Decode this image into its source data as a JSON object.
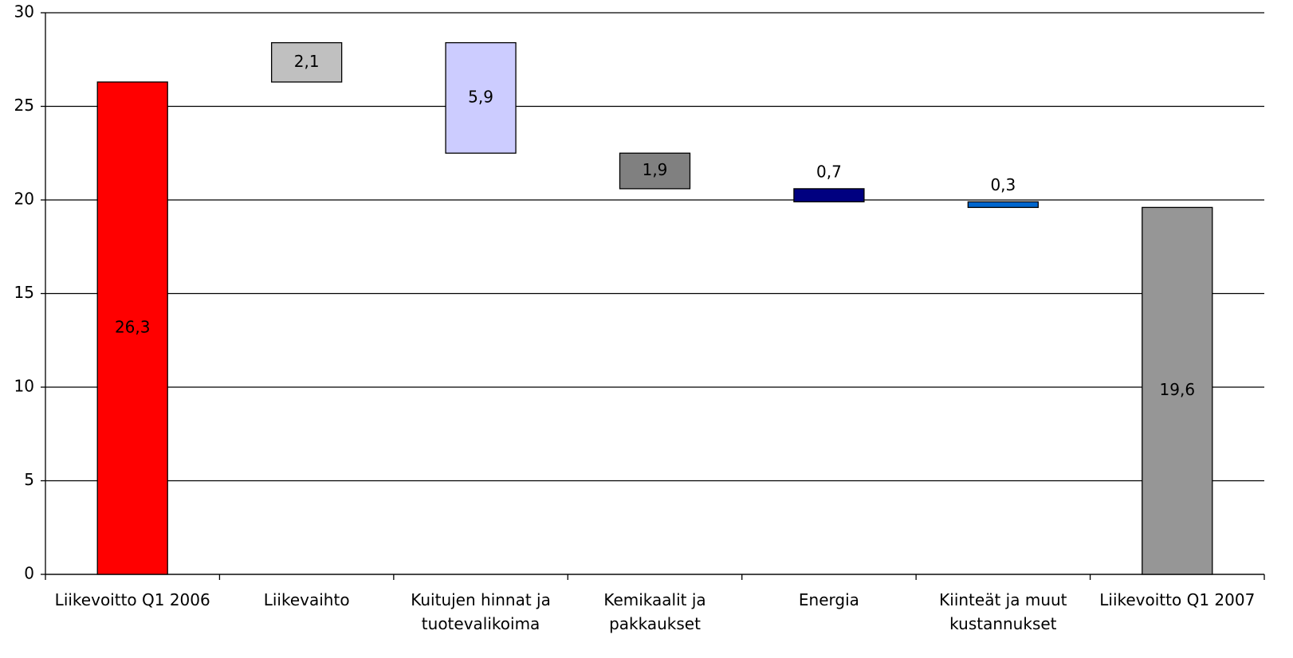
{
  "chart_data": {
    "type": "waterfall",
    "categories": [
      "Liikevoitto Q1 2006",
      "Liikevaihto",
      "Kuitujen hinnat ja tuotevalikoima",
      "Kemikaalit ja pakkaukset",
      "Energia",
      "Kiinteät ja muut kustannukset",
      "Liikevoitto Q1 2007"
    ],
    "measure": [
      "absolute",
      "relative",
      "relative",
      "relative",
      "relative",
      "relative",
      "total"
    ],
    "values": [
      26.3,
      2.1,
      -5.9,
      -1.9,
      -0.7,
      -0.3,
      19.6
    ],
    "value_labels": [
      "26,3",
      "2,1",
      "5,9",
      "1,9",
      "0,7",
      "0,3",
      "19,6"
    ],
    "colors": [
      "#ff0000",
      "#c0c0c0",
      "#ccccff",
      "#808080",
      "#000080",
      "#0066cc",
      "#969696"
    ],
    "ylim": [
      0,
      30
    ],
    "yticks": [
      0,
      5,
      10,
      15,
      20,
      25,
      30
    ],
    "grid": true
  }
}
